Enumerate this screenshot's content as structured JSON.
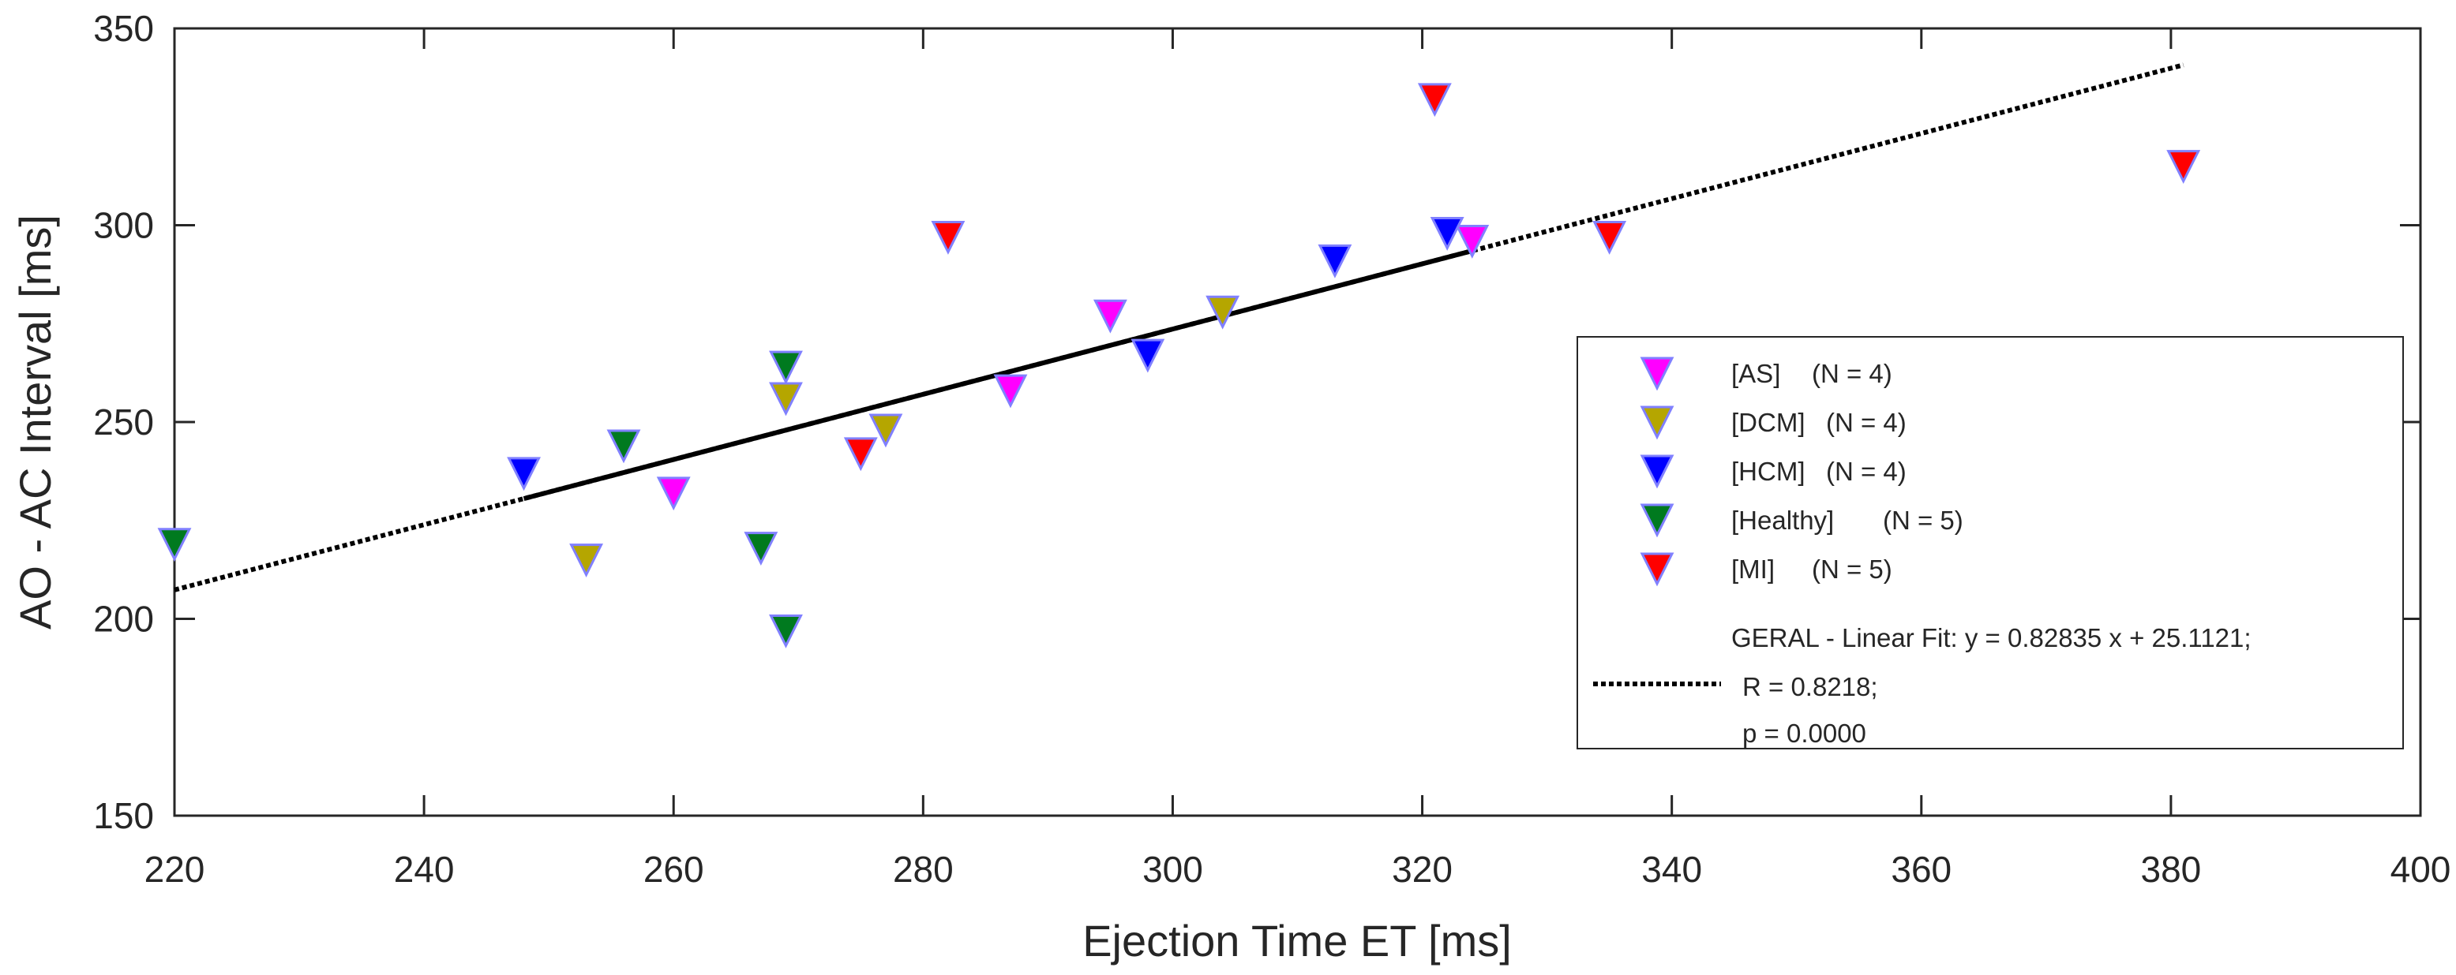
{
  "chart_data": {
    "type": "scatter",
    "title": "",
    "xlabel": "Ejection Time ET [ms]",
    "ylabel": "AO - AC Interval [ms]",
    "xlim": [
      220,
      400
    ],
    "ylim": [
      150,
      350
    ],
    "xticks": [
      "220",
      "240",
      "260",
      "280",
      "300",
      "320",
      "340",
      "360",
      "380",
      "400"
    ],
    "yticks": [
      "150",
      "200",
      "250",
      "300",
      "350"
    ],
    "grid": false,
    "legend_position": "right",
    "marker": "down-triangle",
    "series": [
      {
        "name": "[AS]",
        "count_label": "(N = 4)",
        "color": "#ff00ff",
        "x": [
          260,
          287,
          295,
          324
        ],
        "y": [
          232,
          258,
          277,
          296
        ]
      },
      {
        "name": "[DCM]",
        "count_label": "(N = 4)",
        "color": "#b5a600",
        "x": [
          253,
          269,
          277,
          304
        ],
        "y": [
          215,
          256,
          248,
          278
        ]
      },
      {
        "name": "[HCM]",
        "count_label": "(N = 4)",
        "color": "#0000ff",
        "x": [
          248,
          298,
          313,
          322
        ],
        "y": [
          237,
          267,
          291,
          298
        ]
      },
      {
        "name": "[Healthy]",
        "count_label": "(N = 5)",
        "color": "#007a1f",
        "x": [
          220,
          256,
          267,
          269,
          269
        ],
        "y": [
          219,
          244,
          218,
          264,
          197
        ]
      },
      {
        "name": "[MI]",
        "count_label": "(N = 5)",
        "color": "#ff0000",
        "x": [
          275,
          282,
          321,
          335,
          381
        ],
        "y": [
          242,
          297,
          332,
          297,
          315
        ]
      }
    ],
    "fit": {
      "label": "GERAL - Linear Fit: y = 0.82835 x + 25.1121;",
      "r_label": "R = 0.8218;",
      "p_label": "p = 0.0000",
      "slope": 0.82835,
      "intercept": 25.1121,
      "dotted_x_range": [
        220,
        381
      ],
      "solid_x_range": [
        248,
        324
      ],
      "color": "#000000"
    }
  }
}
